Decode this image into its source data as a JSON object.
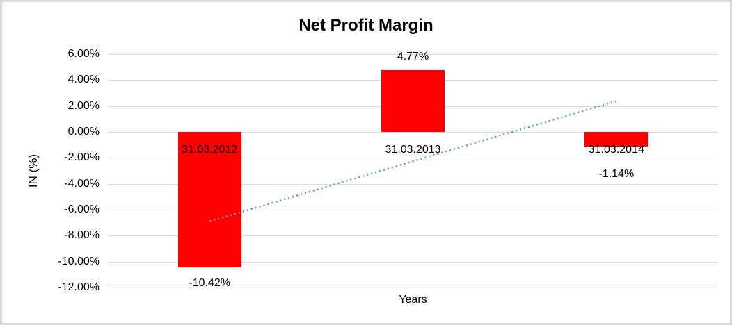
{
  "chart_data": {
    "type": "bar",
    "title": "Net Profit Margin",
    "xlabel": "Years",
    "ylabel": "IN (%)",
    "categories": [
      "31.03.2012",
      "31.03.2013",
      "31.03.2014"
    ],
    "values": [
      -10.42,
      4.77,
      -1.14
    ],
    "data_labels": [
      "-10.42%",
      "4.77%",
      "-1.14%"
    ],
    "ylim": [
      -12,
      6
    ],
    "yticks": [
      {
        "value": 6,
        "label": "6.00%"
      },
      {
        "value": 4,
        "label": "4.00%"
      },
      {
        "value": 2,
        "label": "2.00%"
      },
      {
        "value": 0,
        "label": "0.00%"
      },
      {
        "value": -2,
        "label": "-2.00%"
      },
      {
        "value": -4,
        "label": "-4.00%"
      },
      {
        "value": -6,
        "label": "-6.00%"
      },
      {
        "value": -8,
        "label": "-8.00%"
      },
      {
        "value": -10,
        "label": "-10.00%"
      },
      {
        "value": -12,
        "label": "-12.00%"
      }
    ],
    "grid": true,
    "legend": "none",
    "colors": {
      "bar": "#FF0000",
      "gridline": "#D9D9D9",
      "frame_border": "#D6D6D6",
      "trendline": "#5B9BD5",
      "text": "#000000"
    },
    "trendline": {
      "type": "linear",
      "style": "dotted",
      "start_value": -6.9,
      "end_value": 2.38
    }
  }
}
